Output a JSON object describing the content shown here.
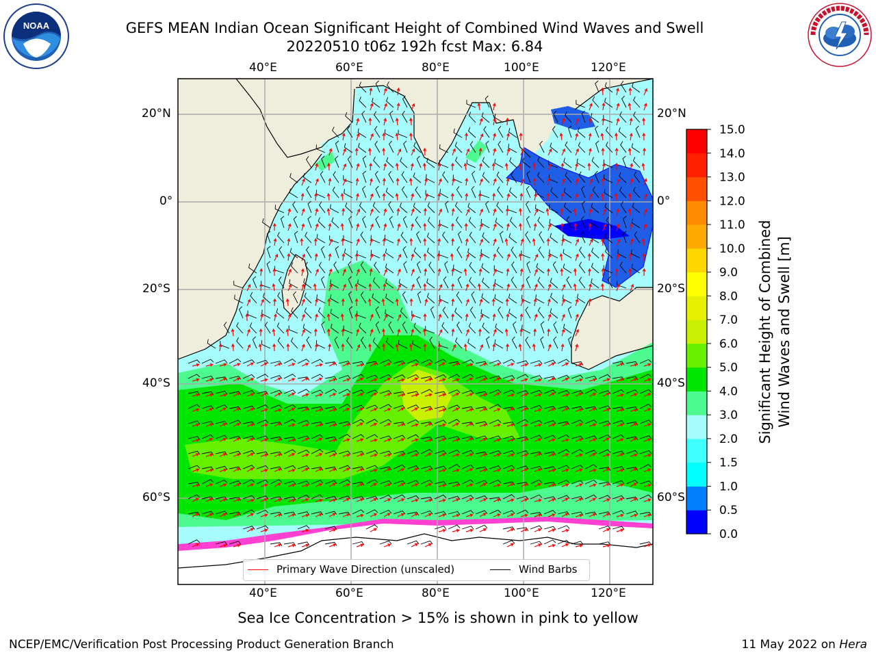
{
  "header": {
    "title_line1": "GEFS MEAN Indian Ocean Significant Height of Combined Wind Waves and Swell",
    "title_line2": "20220510 t06z 192h fcst   Max: 6.84"
  },
  "logos": {
    "left": {
      "icon": "noaa-logo-icon",
      "text": "NOAA"
    },
    "right": {
      "icon": "nws-logo-icon",
      "text": "NATIONAL WEATHER SERVICE"
    }
  },
  "map": {
    "lon_ticks": [
      "40°E",
      "60°E",
      "80°E",
      "100°E",
      "120°E"
    ],
    "lat_ticks": [
      "20°N",
      "0°",
      "20°S",
      "40°S",
      "60°S"
    ],
    "lon_range": [
      20,
      130
    ],
    "lat_range": [
      -70,
      28
    ],
    "land_color": "#efeddc",
    "ocean_color": "#a6fcfc",
    "grid": true,
    "legend": {
      "placement": "bottom-center",
      "items": [
        {
          "label": "Primary Wave Direction (unscaled)",
          "color": "#ff0000"
        },
        {
          "label": "Wind Barbs",
          "color": "#000000"
        }
      ]
    }
  },
  "colorbar": {
    "label_line1": "Significant Height of Combined",
    "label_line2": "Wind Waves and Swell [m]",
    "ticks": [
      "0.0",
      "0.5",
      "1.0",
      "1.5",
      "2.0",
      "3.0",
      "4.0",
      "5.0",
      "6.0",
      "7.0",
      "8.0",
      "9.0",
      "10.0",
      "11.0",
      "12.0",
      "13.0",
      "14.0",
      "15.0"
    ],
    "colors": [
      "#0000ff",
      "#0080ff",
      "#00ffff",
      "#40ffff",
      "#a6fcfc",
      "#4dfa90",
      "#00e600",
      "#66f000",
      "#c8f000",
      "#e6f000",
      "#ffff00",
      "#ffd700",
      "#ffaa00",
      "#ff8c00",
      "#ff5000",
      "#ff2000",
      "#ff0000"
    ]
  },
  "footer": {
    "subtitle": "Sea Ice Concentration > 15% is shown in pink to yellow",
    "left": "NCEP/EMC/Verification Post Processing Product Generation Branch",
    "right_date": "11 May 2022 on",
    "right_host": "Hera"
  }
}
